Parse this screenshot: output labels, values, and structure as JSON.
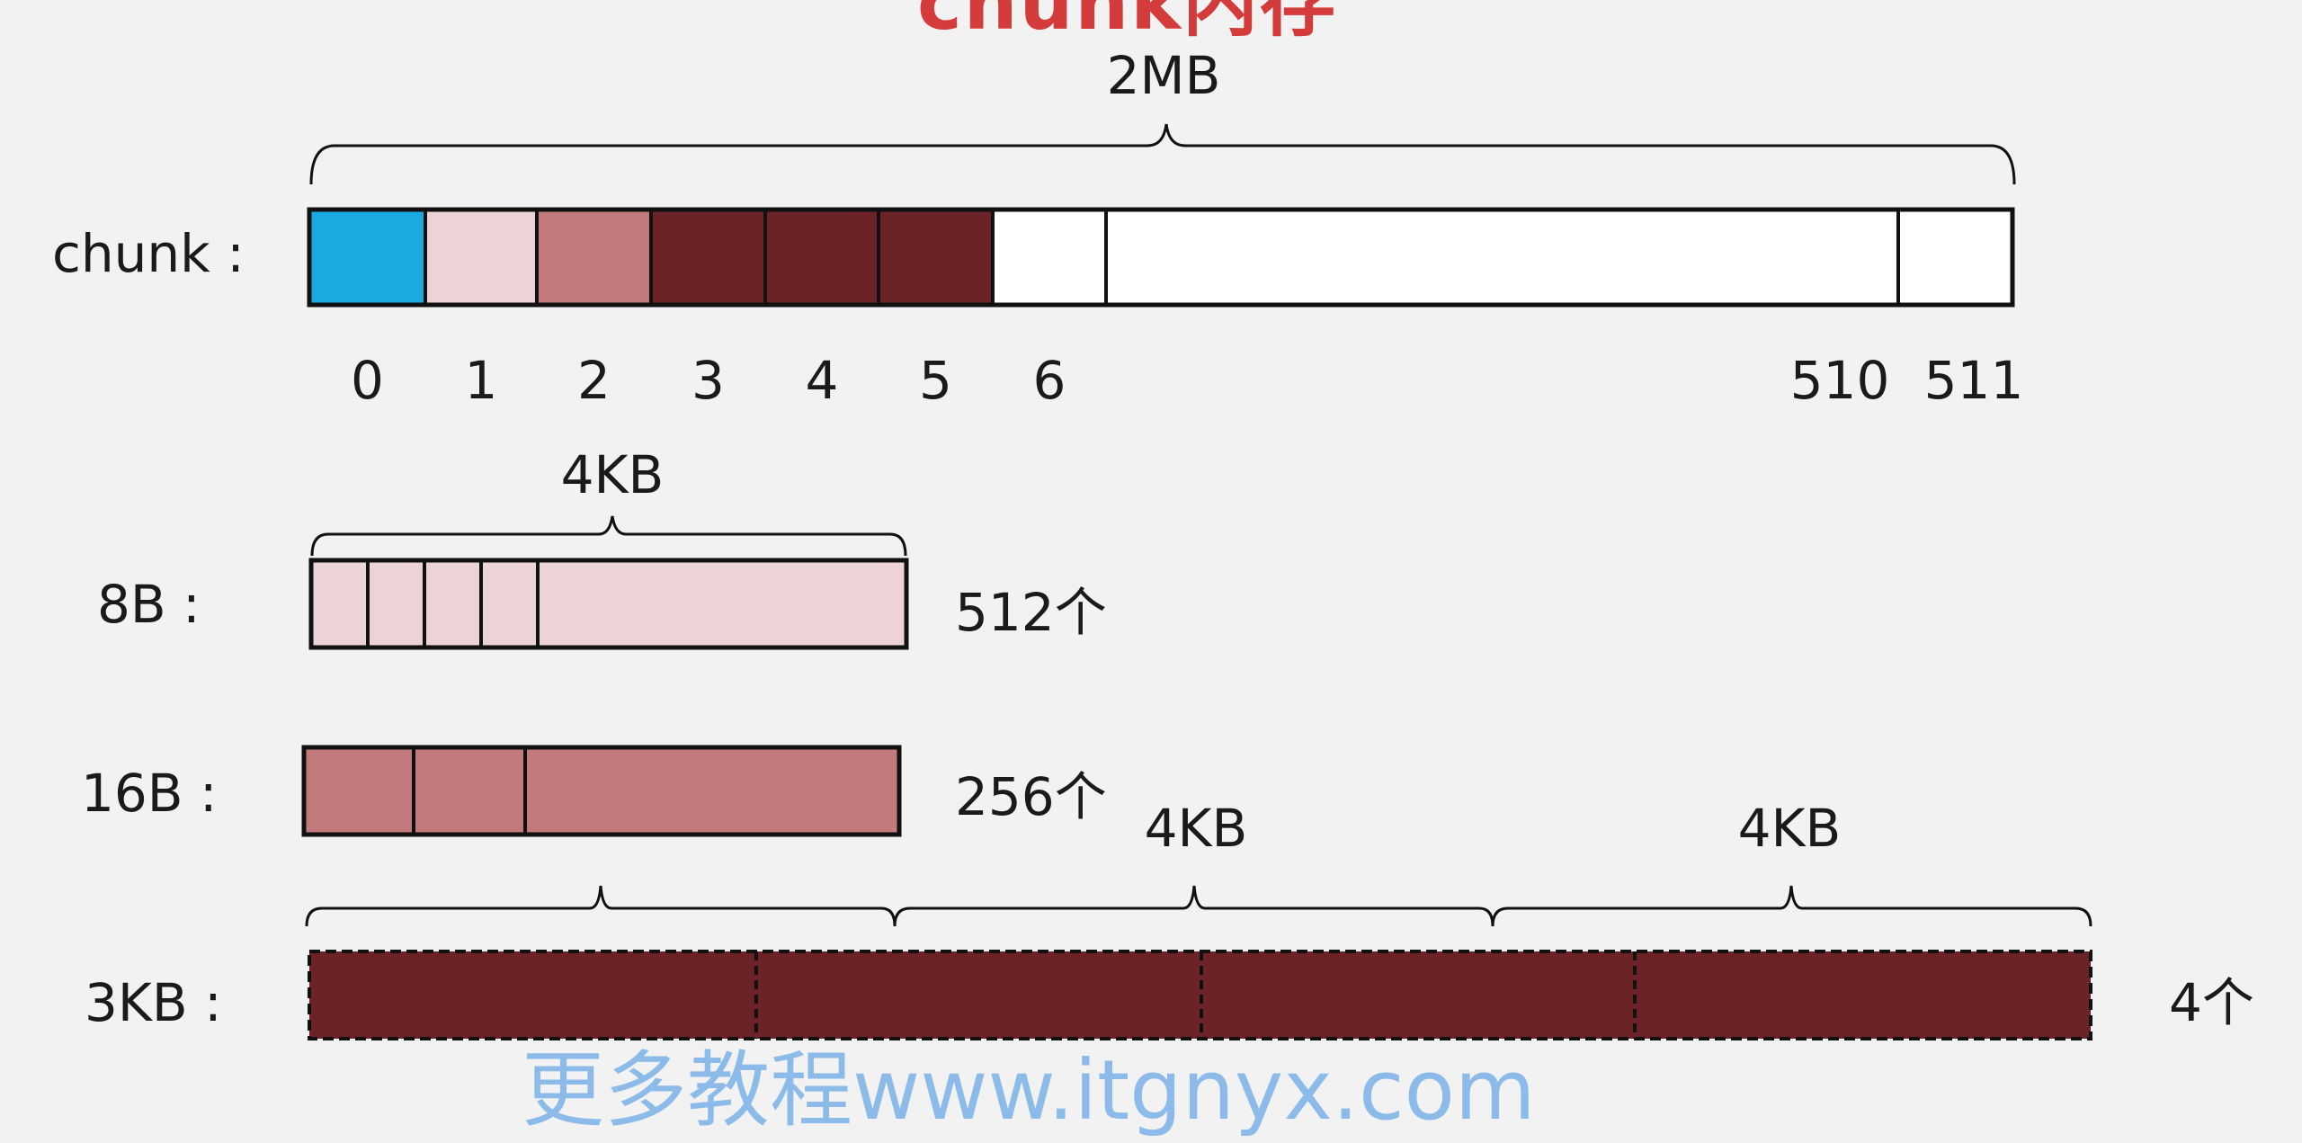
{
  "slide": {
    "title_fragment": "chunk内存",
    "watermark": "更多教程www.itgnyx.com"
  },
  "colors": {
    "background": "#f2f2f2",
    "run_meta": "#1aa9e0",
    "page_8b": "#ecd3d5",
    "page_16b": "#c27a7d",
    "page_3kb": "#6b2328",
    "free": "#ffffff",
    "stroke": "#111111"
  },
  "chunk": {
    "label": "chunk :",
    "size_label": "2MB",
    "pages": [
      {
        "index": "0",
        "kind": "run_meta"
      },
      {
        "index": "1",
        "kind": "page_8b"
      },
      {
        "index": "2",
        "kind": "page_16b"
      },
      {
        "index": "3",
        "kind": "page_3kb"
      },
      {
        "index": "4",
        "kind": "page_3kb"
      },
      {
        "index": "5",
        "kind": "page_3kb"
      },
      {
        "index": "6",
        "kind": "free"
      },
      {
        "index": "",
        "kind": "free"
      },
      {
        "index": "510",
        "kind": "free"
      },
      {
        "index": "511",
        "kind": "free"
      }
    ]
  },
  "rows": [
    {
      "label": "8B :",
      "size_label": "4KB",
      "count": "512个",
      "kind": "page_8b",
      "slots": 4
    },
    {
      "label": "16B :",
      "size_label": "",
      "count": "256个",
      "kind": "page_16b",
      "slots": 2
    },
    {
      "label": "3KB :",
      "size_labels": [
        "4KB",
        "4KB"
      ],
      "count": "4个",
      "kind": "page_3kb",
      "slots": 4
    }
  ]
}
